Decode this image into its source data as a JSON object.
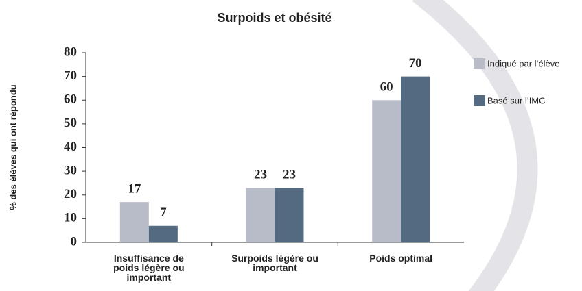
{
  "chart_data": {
    "type": "bar",
    "title": "Surpoids et obésité",
    "y_label": "% des élèves qui ont répondu",
    "categories": [
      "Insuffisance de poids légère ou important",
      "Surpoids légère ou important",
      "Poids optimal"
    ],
    "series": [
      {
        "name": "Indiqué par l’élève",
        "color": "#b8bcc8",
        "values": [
          17,
          23,
          60
        ]
      },
      {
        "name": "Basé sur l’IMC",
        "color": "#536a80",
        "values": [
          7,
          23,
          70
        ]
      }
    ],
    "ylim": [
      0,
      80
    ],
    "yticks": [
      0,
      10,
      20,
      30,
      40,
      50,
      60,
      70,
      80
    ],
    "grid": false,
    "legend": "right"
  }
}
